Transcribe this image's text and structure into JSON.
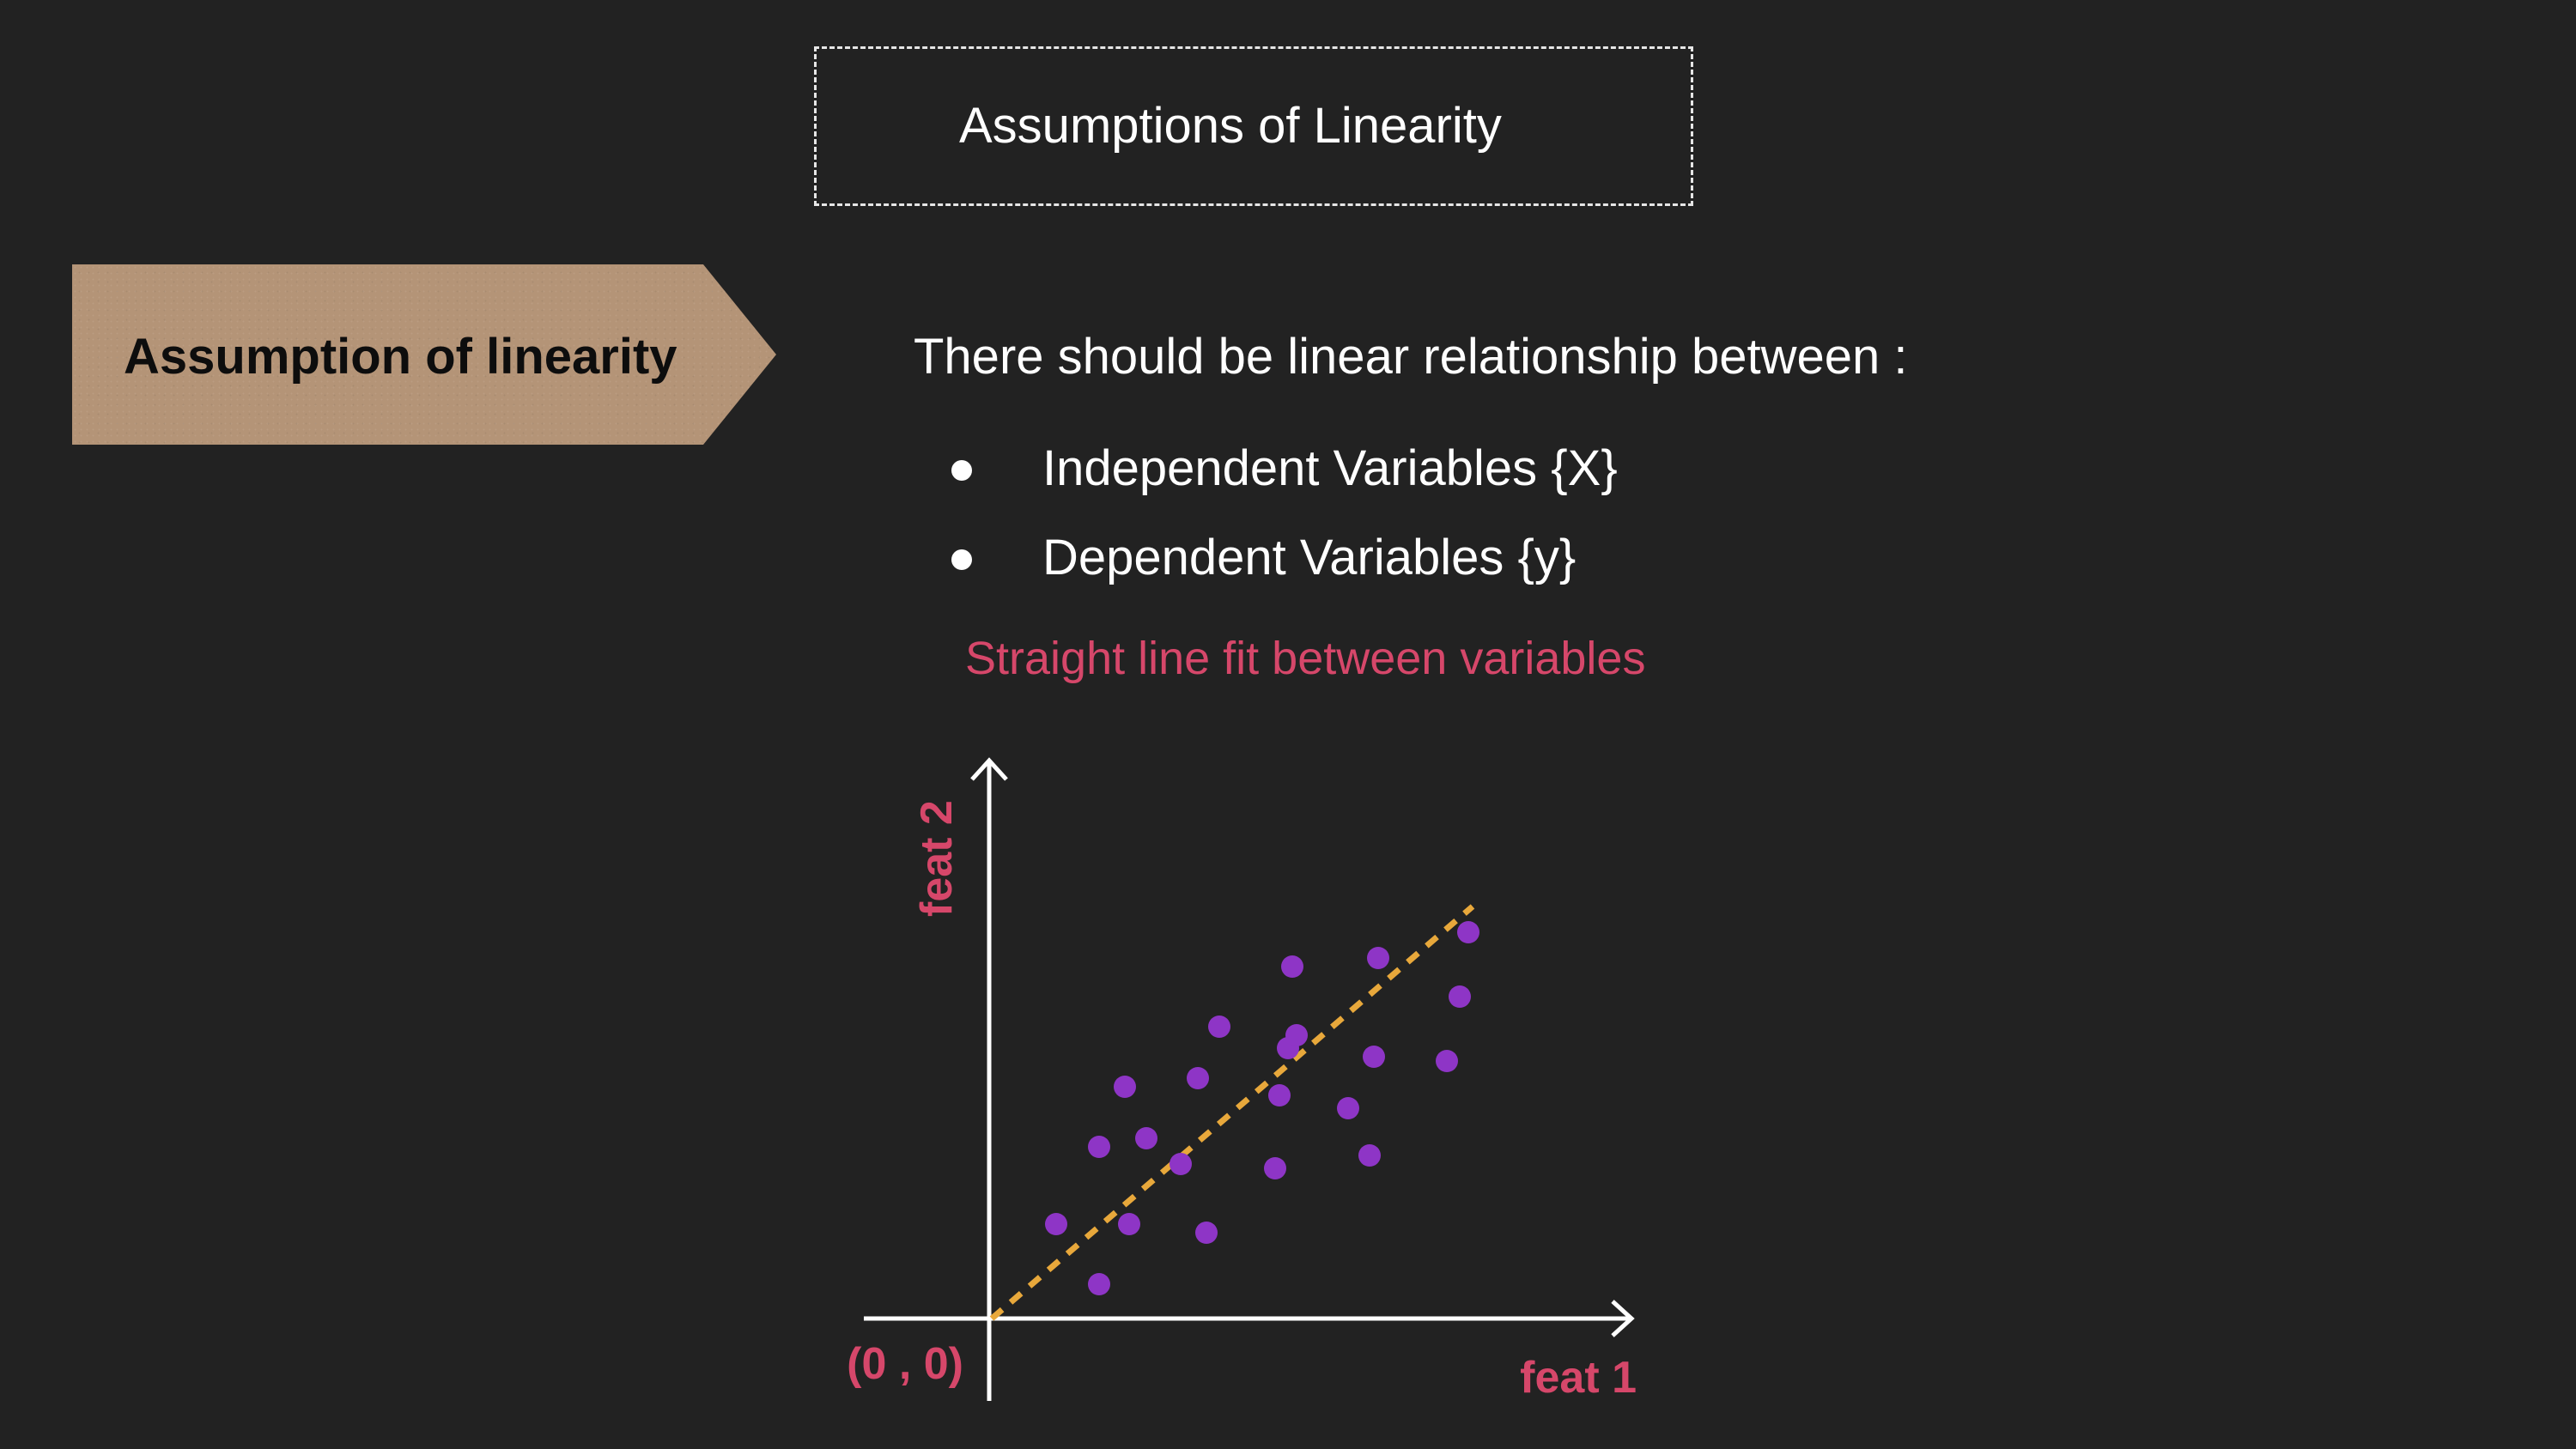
{
  "title": "Assumptions of Linearity",
  "tag_label": "Assumption of linearity",
  "intro": "There should be linear relationship between :",
  "bullets": [
    "Independent Variables {X}",
    "Dependent Variables {y}"
  ],
  "note": "Straight line fit between variables",
  "colors": {
    "background": "#222222",
    "accent_text": "#d6476a",
    "points": "#8e35c6",
    "fit_line": "#e8a83b",
    "axes": "#ffffff",
    "tag": "#b49477"
  },
  "diagram": {
    "x_label": "feat 1",
    "y_label": "feat 2",
    "origin_label": "(0 , 0)",
    "fit_line": {
      "from": [
        0,
        0
      ],
      "to": [
        11.2,
        9.6
      ]
    },
    "points": [
      [
        1.5,
        2.2
      ],
      [
        2.5,
        4.0
      ],
      [
        2.5,
        0.8
      ],
      [
        3.1,
        5.4
      ],
      [
        3.2,
        2.2
      ],
      [
        3.6,
        4.2
      ],
      [
        4.4,
        3.6
      ],
      [
        4.8,
        5.6
      ],
      [
        5.0,
        2.0
      ],
      [
        5.3,
        6.8
      ],
      [
        6.6,
        3.5
      ],
      [
        6.7,
        5.2
      ],
      [
        6.9,
        6.3
      ],
      [
        7.0,
        8.2
      ],
      [
        7.1,
        6.6
      ],
      [
        8.3,
        4.9
      ],
      [
        8.8,
        3.8
      ],
      [
        8.9,
        6.1
      ],
      [
        9.0,
        8.4
      ],
      [
        10.6,
        6.0
      ],
      [
        10.9,
        7.5
      ],
      [
        11.1,
        9.0
      ]
    ]
  }
}
